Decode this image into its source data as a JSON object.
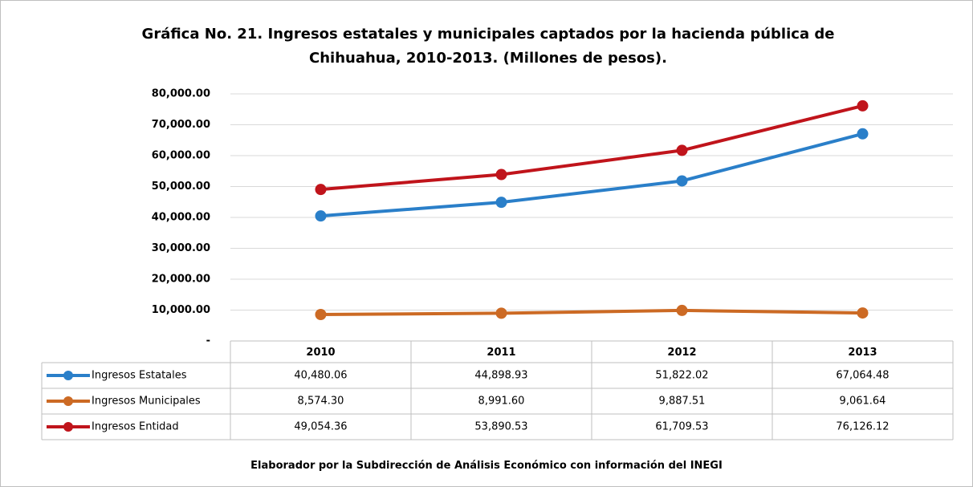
{
  "chart_data": {
    "type": "line",
    "title": "Gráfica No. 21. Ingresos estatales y municipales captados por la hacienda pública de Chihuahua, 2010-2013. (Millones de pesos).",
    "categories": [
      "2010",
      "2011",
      "2012",
      "2013"
    ],
    "series": [
      {
        "name": "Ingresos Estatales",
        "color": "#2a7fc9",
        "values": [
          40480.06,
          44898.93,
          51822.02,
          67064.48
        ],
        "value_labels": [
          "40,480.06",
          "44,898.93",
          "51,822.02",
          "67,064.48"
        ]
      },
      {
        "name": "Ingresos Municipales",
        "color": "#cc6a24",
        "values": [
          8574.3,
          8991.6,
          9887.51,
          9061.64
        ],
        "value_labels": [
          "8,574.30",
          "8,991.60",
          "9,887.51",
          "9,061.64"
        ]
      },
      {
        "name": "Ingresos Entidad",
        "color": "#c0141b",
        "values": [
          49054.36,
          53890.53,
          61709.53,
          76126.12
        ],
        "value_labels": [
          "49,054.36",
          "53,890.53",
          "61,709.53",
          "76,126.12"
        ]
      }
    ],
    "ylim": [
      0,
      80000
    ],
    "yticks": [
      {
        "value": 0,
        "label": "-"
      },
      {
        "value": 10000,
        "label": "10,000.00"
      },
      {
        "value": 20000,
        "label": "20,000.00"
      },
      {
        "value": 30000,
        "label": "30,000.00"
      },
      {
        "value": 40000,
        "label": "40,000.00"
      },
      {
        "value": 50000,
        "label": "50,000.00"
      },
      {
        "value": 60000,
        "label": "60,000.00"
      },
      {
        "value": 70000,
        "label": "70,000.00"
      },
      {
        "value": 80000,
        "label": "80,000.00"
      }
    ],
    "grid": true,
    "note": "Elaborador por la Subdirección de Análisis Económico con información del INEGI"
  }
}
